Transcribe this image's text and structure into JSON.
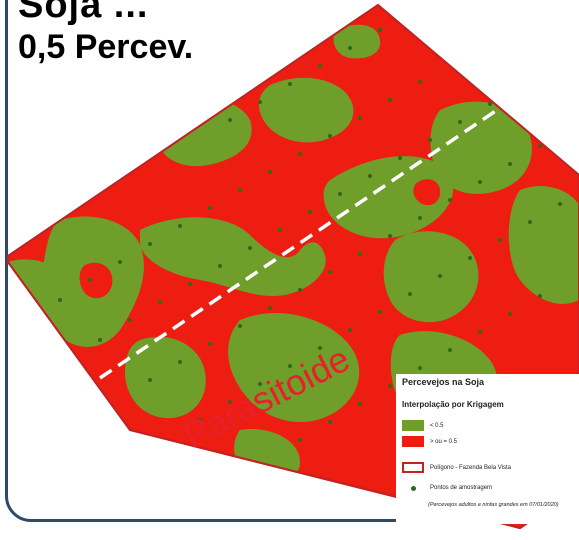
{
  "header": {
    "title_top": "Soja ...",
    "title": "0,5 Percev."
  },
  "legend": {
    "title": "Percevejos na Soja",
    "subtitle": "Interpolação por Krigagem",
    "items": [
      {
        "label": "< 0.5",
        "color": "#6f9e2a"
      },
      {
        "label": "> ou = 0.5",
        "color": "#ee1d12"
      },
      {
        "label": "Polígono - Fazenda Bela Vista",
        "color": "#c32222"
      },
      {
        "label": "Pontos de amostragem",
        "color": "#2c6a1a"
      }
    ],
    "note": "(Percevejos adultos e ninfas grandes em 07/01/2020)"
  },
  "overlay": {
    "stamp": "Parasitoide"
  },
  "colors": {
    "low": "#6f9e2a",
    "high": "#ee1d12",
    "border": "#c32222",
    "frame": "#2e4a6b",
    "transect": "#ffffff"
  }
}
